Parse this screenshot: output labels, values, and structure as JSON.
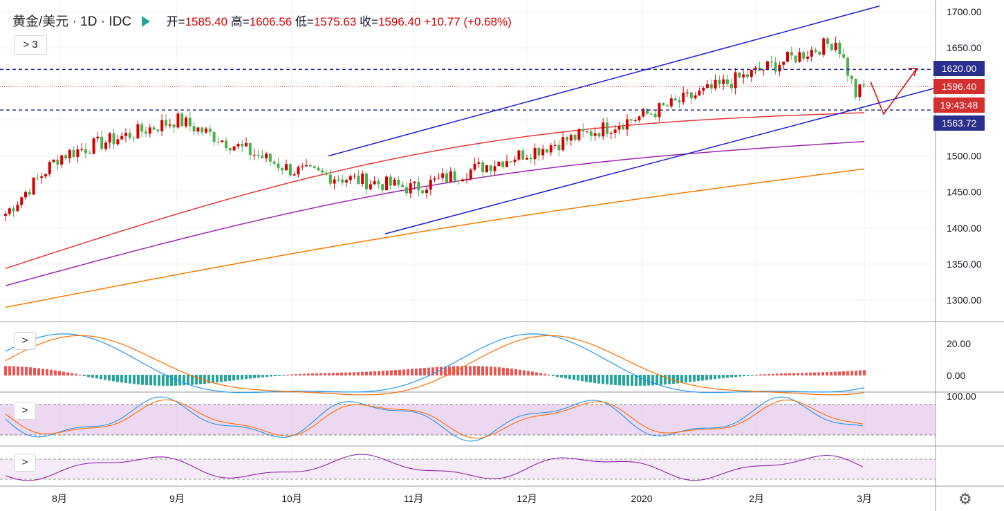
{
  "header": {
    "symbol": "黄金/美元",
    "sep1": "·",
    "interval": "1D",
    "sep2": "·",
    "source": "IDC",
    "open_label": "开=",
    "open": "1585.40",
    "high_label": "高=",
    "high": "1606.56",
    "low_label": "低=",
    "low": "1575.63",
    "close_label": "收=",
    "close": "1596.40",
    "change": "+10.77 (+0.68%)"
  },
  "controls": {
    "indicators_toggle": "> 3",
    "macd_toggle": ">",
    "stoch_toggle": ">",
    "rsi_toggle": ">"
  },
  "price_labels": {
    "resistance": "1620.00",
    "last": "1596.40",
    "countdown": "19:43:48",
    "support": "1563.72"
  },
  "colors": {
    "up": "#d50000",
    "down": "#4caf50",
    "ma_short": "#e53935",
    "ma_mid": "#9c27b0",
    "ma_long": "#f57c00",
    "channel": "#1a1adb",
    "level": "#2a2e8c",
    "macd_fast": "#2196f3",
    "macd_slow": "#ff6d00",
    "hist_pos": "#ef5350",
    "hist_neg": "#26a69a",
    "stoch_band": "#e1bee7",
    "rsi_line": "#8e24aa"
  },
  "chart_data": {
    "type": "candlestick",
    "y_axis": {
      "ticks": [
        "1300.00",
        "1350.00",
        "1400.00",
        "1450.00",
        "1500.00",
        "1550.00",
        "1600.00",
        "1650.00",
        "1700.00"
      ],
      "range": [
        1258,
        1707
      ]
    },
    "x_axis": {
      "ticks": [
        "8月",
        "9月",
        "10月",
        "11月",
        "12月",
        "2020",
        "2月",
        "3月"
      ]
    },
    "horizontal_levels": [
      1620.0,
      1563.72
    ],
    "last_price": 1596.4,
    "ohlc_key_points": [
      {
        "date": "2019-07-25",
        "close": 1420
      },
      {
        "date": "2019-08-13",
        "close": 1500
      },
      {
        "date": "2019-09-04",
        "close": 1550
      },
      {
        "date": "2019-10-01",
        "close": 1480
      },
      {
        "date": "2019-11-12",
        "close": 1455
      },
      {
        "date": "2020-01-08",
        "close": 1555
      },
      {
        "date": "2020-02-24",
        "close": 1660
      },
      {
        "date": "2020-02-28",
        "close": 1585
      },
      {
        "date": "2020-03-02",
        "close": 1596.4
      }
    ],
    "macd_axis": {
      "ticks": [
        "20.00",
        "0.00"
      ]
    },
    "stoch_axis": {
      "ticks": [
        "100.00"
      ]
    }
  }
}
